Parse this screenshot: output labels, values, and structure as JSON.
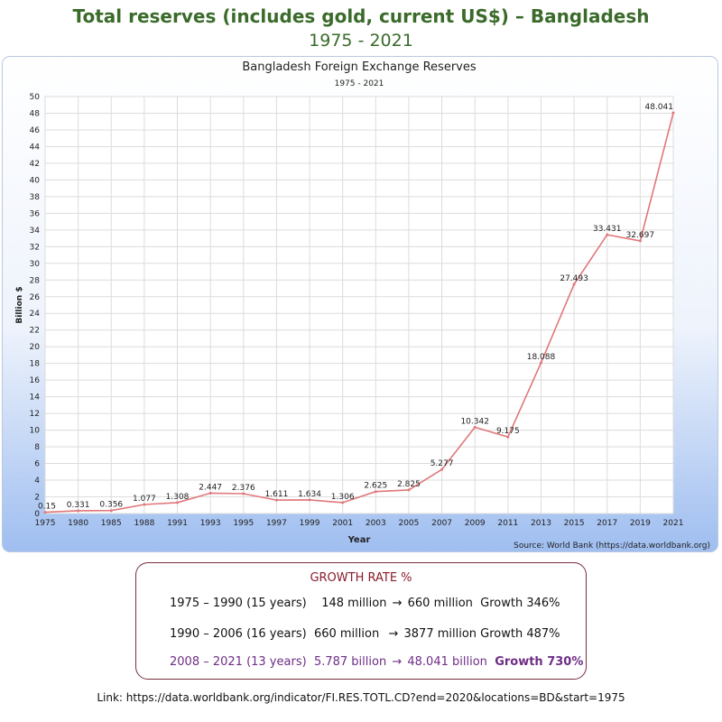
{
  "header": {
    "title": "Total reserves (includes gold, current US$) – Bangladesh",
    "subtitle": "1975 - 2021"
  },
  "chart_data": {
    "type": "line",
    "title": "Bangladesh Foreign Exchange Reserves",
    "subtitle": "1975 - 2021",
    "xlabel": "Year",
    "ylabel": "Billion $",
    "source": "Source: World Bank (https://data.worldbank.org)",
    "ylim": [
      0,
      50
    ],
    "ytick_step": 2,
    "grid": true,
    "line_color": "#e0777a",
    "x_ticks": [
      "1975",
      "1980",
      "1985",
      "1988",
      "1991",
      "1993",
      "1995",
      "1997",
      "1999",
      "2001",
      "2003",
      "2005",
      "2007",
      "2009",
      "2011",
      "2013",
      "2015",
      "2017",
      "2019",
      "2021"
    ],
    "series": [
      {
        "name": "Total reserves",
        "values": [
          0.15,
          0.331,
          0.356,
          1.077,
          1.308,
          2.447,
          2.376,
          1.611,
          1.634,
          1.306,
          2.625,
          2.825,
          5.277,
          10.342,
          9.175,
          18.088,
          27.493,
          33.431,
          32.697,
          48.041
        ],
        "labels": [
          "0.15",
          "0.331",
          "0.356",
          "1.077",
          "1.308",
          "2.447",
          "2.376",
          "1.611",
          "1.634",
          "1.306",
          "2.625",
          "2.825",
          "5.277",
          "10.342",
          "9.175",
          "18.088",
          "27.493",
          "33.431",
          "32.697",
          "48.041"
        ]
      }
    ]
  },
  "growth": {
    "title": "GROWTH RATE %",
    "rows": [
      {
        "period": "1975 – 1990 (15 years)",
        "from": "148 million",
        "arrow": "→",
        "to": "660 million",
        "growth": "Growth 346%"
      },
      {
        "period": "1990 – 2006 (16 years)",
        "from": "660 million",
        "arrow": "→",
        "to": "3877 million",
        "growth": "Growth 487%"
      },
      {
        "period": "2008 – 2021 (13 years)",
        "from": "5.787 billion",
        "arrow": "→",
        "to": "48.041",
        "unit": "billion",
        "growth": "Growth 730%"
      }
    ]
  },
  "footer": {
    "link": "Link:  https://data.worldbank.org/indicator/FI.RES.TOTL.CD?end=2020&locations=BD&start=1975"
  }
}
